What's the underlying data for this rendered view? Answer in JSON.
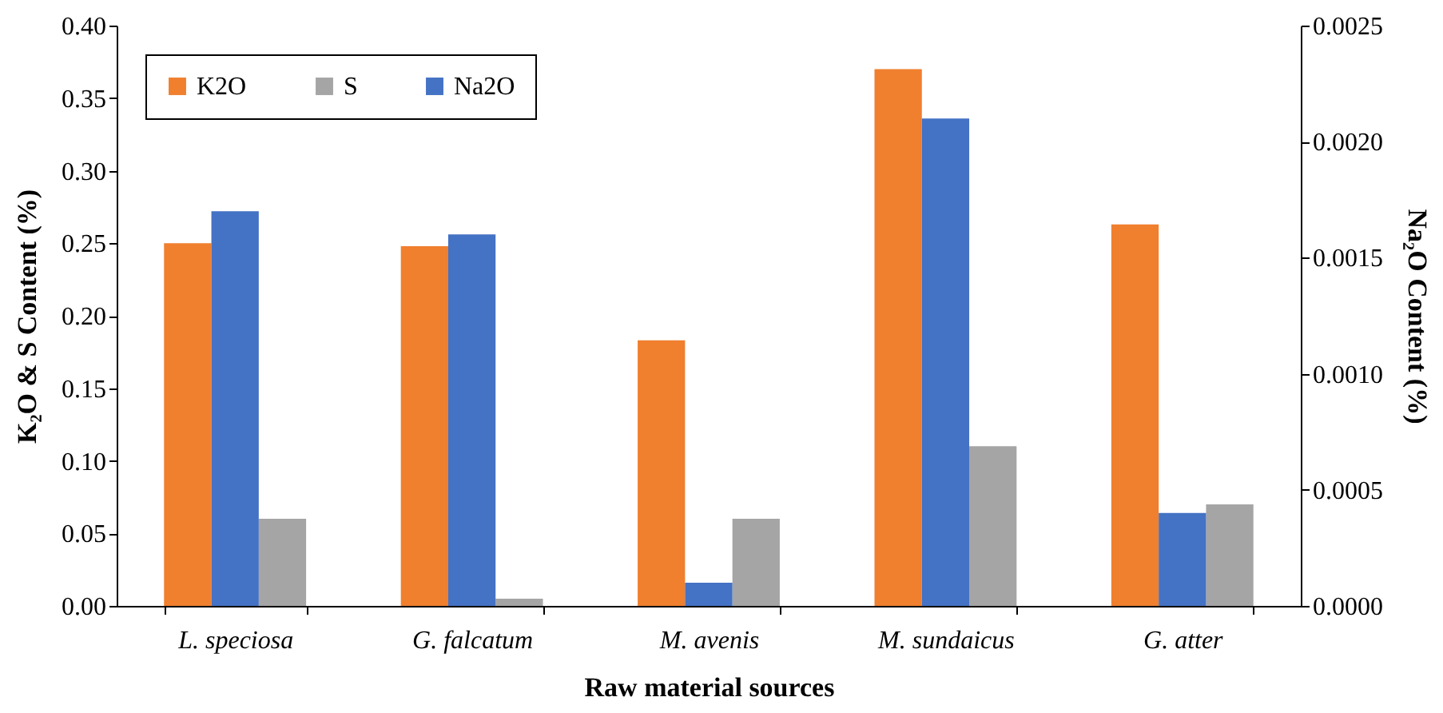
{
  "chart_data": {
    "type": "bar",
    "xlabel": "Raw material sources",
    "ylabel": "K₂O & S Content (%)",
    "y2label": "Na₂O Content (%)",
    "categories": [
      "L. speciosa",
      "G. falcatum",
      "M. avenis",
      "M. sundaicus",
      "G. atter"
    ],
    "series": [
      {
        "name": "K2O",
        "color": "#f07f2e",
        "values": [
          0.25,
          0.248,
          0.183,
          0.37,
          0.263
        ]
      },
      {
        "name": "Na2O",
        "color": "#4472c4",
        "axis": "y2",
        "values": [
          0.0017,
          0.0016,
          0.0001,
          0.0021,
          0.0004
        ]
      },
      {
        "name": "S",
        "color": "#a5a5a5",
        "values": [
          0.06,
          0.005,
          0.06,
          0.11,
          0.07
        ]
      }
    ],
    "ylim": [
      0,
      0.4
    ],
    "yticks": [
      {
        "value": 0,
        "label": "0.00"
      },
      0.05,
      {
        "value": 0.1,
        "label": "0.10"
      },
      0.15,
      {
        "value": 0.2,
        "label": "0.20"
      },
      0.25,
      {
        "value": 0.3,
        "label": "0.30"
      },
      0.35,
      {
        "value": 0.4,
        "label": "0.40"
      }
    ],
    "y2lim": [
      0,
      0.0025
    ],
    "y2ticks": [
      {
        "value": 0,
        "label": "0.0000"
      },
      0.0005,
      {
        "value": 0.001,
        "label": "0.0010"
      },
      0.0015,
      {
        "value": 0.002,
        "label": "0.0020"
      },
      0.0025
    ],
    "grid": false,
    "legend": "top left"
  }
}
